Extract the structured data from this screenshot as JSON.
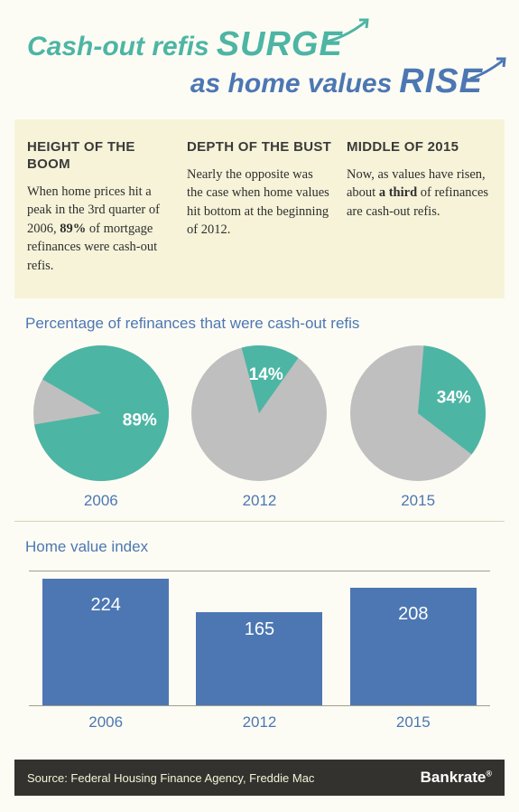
{
  "colors": {
    "teal": "#4db5a4",
    "blue": "#4c77b3",
    "cream_bg": "#fdfcf4",
    "panel_bg": "#f6f3d9",
    "gray_slice": "#bfbfbf",
    "footer_bg": "#33322e",
    "axis": "#a09e8e"
  },
  "title": {
    "part1a": "Cash-out refis",
    "part1b": "SURGE",
    "part2a": "as home values",
    "part2b": "RISE"
  },
  "columns": [
    {
      "heading": "HEIGHT OF THE BOOM",
      "body_pre": "When home prices hit a peak in the 3rd quarter of 2006, ",
      "body_bold": "89%",
      "body_post": " of mortgage refinances were cash-out refis."
    },
    {
      "heading": "DEPTH OF THE BUST",
      "body_pre": "Nearly the opposite was the case when home values hit bottom at the beginning of 2012.",
      "body_bold": "",
      "body_post": ""
    },
    {
      "heading": "MIDDLE OF 2015",
      "body_pre": "Now, as values have risen, about ",
      "body_bold": "a third",
      "body_post": " of refinances are cash-out refis."
    }
  ],
  "pies": {
    "title": "Percentage of refinances that were cash-out refis",
    "diameter": 150,
    "items": [
      {
        "year": "2006",
        "percent": 89,
        "label": "89%",
        "start_angle": -60
      },
      {
        "year": "2012",
        "percent": 14,
        "label": "14%",
        "start_angle": -15
      },
      {
        "year": "2015",
        "percent": 34,
        "label": "34%",
        "start_angle": 5
      }
    ]
  },
  "bars": {
    "title": "Home value index",
    "ymax": 240,
    "items": [
      {
        "year": "2006",
        "value": 224
      },
      {
        "year": "2012",
        "value": 165
      },
      {
        "year": "2015",
        "value": 208
      }
    ]
  },
  "footer": {
    "source": "Source: Federal Housing Finance Agency, Freddie Mac",
    "brand": "Bankrate"
  }
}
